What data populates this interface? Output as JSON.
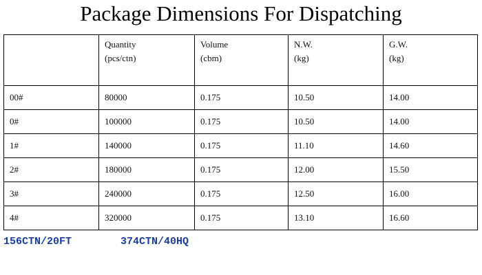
{
  "title": "Package Dimensions For Dispatching",
  "table": {
    "header": [
      {
        "label": "Quantity",
        "unit": "(pcs/ctn)"
      },
      {
        "label": "Volume",
        "unit": "(cbm)"
      },
      {
        "label": "N.W.",
        "unit": "(kg)"
      },
      {
        "label": "G.W.",
        "unit": "(kg)"
      }
    ],
    "rows": [
      [
        "00#",
        "80000",
        "0.175",
        "10.50",
        "14.00"
      ],
      [
        "0#",
        "100000",
        "0.175",
        "10.50",
        "14.00"
      ],
      [
        "1#",
        "140000",
        "0.175",
        "11.10",
        "14.60"
      ],
      [
        "2#",
        "180000",
        "0.175",
        "12.00",
        "15.50"
      ],
      [
        "3#",
        "240000",
        "0.175",
        "12.50",
        "16.00"
      ],
      [
        "4#",
        "320000",
        "0.175",
        "13.10",
        "16.60"
      ]
    ]
  },
  "footer": [
    "156CTN/20FT",
    "374CTN/40HQ"
  ]
}
